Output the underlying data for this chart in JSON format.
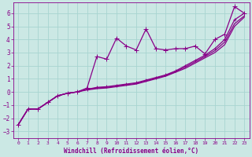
{
  "title": "",
  "xlabel": "Windchill (Refroidissement éolien,°C)",
  "ylabel": "",
  "bg_color": "#cbe8e4",
  "grid_color": "#a8d4d0",
  "line_color": "#880088",
  "xlim": [
    -0.5,
    23.5
  ],
  "ylim": [
    -3.5,
    6.8
  ],
  "xticks": [
    0,
    1,
    2,
    3,
    4,
    5,
    6,
    7,
    8,
    9,
    10,
    11,
    12,
    13,
    14,
    15,
    16,
    17,
    18,
    19,
    20,
    21,
    22,
    23
  ],
  "yticks": [
    -3,
    -2,
    -1,
    0,
    1,
    2,
    3,
    4,
    5,
    6
  ],
  "series1_x": [
    0,
    1,
    2,
    3,
    4,
    5,
    6,
    7,
    8,
    9,
    10,
    11,
    12,
    13,
    14,
    15,
    16,
    17,
    18,
    19,
    20,
    21,
    22,
    23
  ],
  "series1_y": [
    -2.5,
    -1.3,
    -1.3,
    -0.8,
    -0.3,
    -0.1,
    0.0,
    0.3,
    2.7,
    2.5,
    4.1,
    3.5,
    3.2,
    4.8,
    3.3,
    3.2,
    3.3,
    3.3,
    3.5,
    2.9,
    4.0,
    4.4,
    6.5,
    6.0
  ],
  "series2_x": [
    0,
    1,
    2,
    3,
    4,
    5,
    6,
    7,
    8,
    9,
    10,
    11,
    12,
    13,
    14,
    15,
    16,
    17,
    18,
    19,
    20,
    21,
    22,
    23
  ],
  "series2_y": [
    -2.5,
    -1.3,
    -1.3,
    -0.8,
    -0.3,
    -0.1,
    0.0,
    0.2,
    0.35,
    0.4,
    0.5,
    0.6,
    0.7,
    0.9,
    1.1,
    1.3,
    1.6,
    2.0,
    2.4,
    2.8,
    3.3,
    4.0,
    5.5,
    6.0
  ],
  "series3_x": [
    0,
    1,
    2,
    3,
    4,
    5,
    6,
    7,
    8,
    9,
    10,
    11,
    12,
    13,
    14,
    15,
    16,
    17,
    18,
    19,
    20,
    21,
    22,
    23
  ],
  "series3_y": [
    -2.5,
    -1.3,
    -1.3,
    -0.8,
    -0.3,
    -0.1,
    0.0,
    0.2,
    0.3,
    0.35,
    0.45,
    0.55,
    0.65,
    0.85,
    1.05,
    1.25,
    1.55,
    1.9,
    2.3,
    2.7,
    3.15,
    3.8,
    5.2,
    5.8
  ],
  "series4_x": [
    0,
    1,
    2,
    3,
    4,
    5,
    6,
    7,
    8,
    9,
    10,
    11,
    12,
    13,
    14,
    15,
    16,
    17,
    18,
    19,
    20,
    21,
    22,
    23
  ],
  "series4_y": [
    -2.5,
    -1.3,
    -1.3,
    -0.8,
    -0.3,
    -0.1,
    0.0,
    0.15,
    0.25,
    0.3,
    0.4,
    0.5,
    0.6,
    0.8,
    1.0,
    1.2,
    1.5,
    1.8,
    2.2,
    2.6,
    3.0,
    3.6,
    5.0,
    5.7
  ]
}
